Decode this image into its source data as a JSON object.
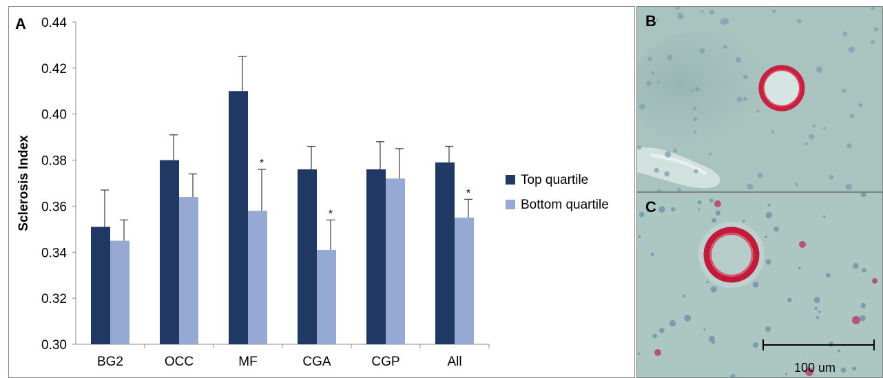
{
  "panels": {
    "a_label": "A",
    "b_label": "B",
    "c_label": "C",
    "scale_bar_label": "100 um"
  },
  "colors": {
    "top_quartile": "#1f3864",
    "bottom_quartile": "#95a9d3",
    "tissue_background": "#a9c3bf",
    "stain": "#cc2244"
  },
  "chart_data": {
    "type": "bar",
    "title": "",
    "xlabel": "",
    "ylabel": "Sclerosis Index",
    "ylim": [
      0.3,
      0.44
    ],
    "yticks": [
      "0.30",
      "0.32",
      "0.34",
      "0.36",
      "0.38",
      "0.40",
      "0.42",
      "0.44"
    ],
    "categories": [
      "BG2",
      "OCC",
      "MF",
      "CGA",
      "CGP",
      "All"
    ],
    "series": [
      {
        "name": "Top quartile",
        "values": [
          0.351,
          0.38,
          0.41,
          0.376,
          0.376,
          0.379
        ],
        "error": [
          0.016,
          0.011,
          0.015,
          0.01,
          0.012,
          0.007
        ],
        "significant": [
          false,
          false,
          false,
          false,
          false,
          false
        ]
      },
      {
        "name": "Bottom quartile",
        "values": [
          0.345,
          0.364,
          0.358,
          0.341,
          0.372,
          0.355
        ],
        "error": [
          0.009,
          0.01,
          0.018,
          0.013,
          0.013,
          0.008
        ],
        "significant": [
          false,
          false,
          true,
          true,
          false,
          true
        ]
      }
    ],
    "significance_marker": "*",
    "grid": false,
    "legend_position": "right"
  }
}
